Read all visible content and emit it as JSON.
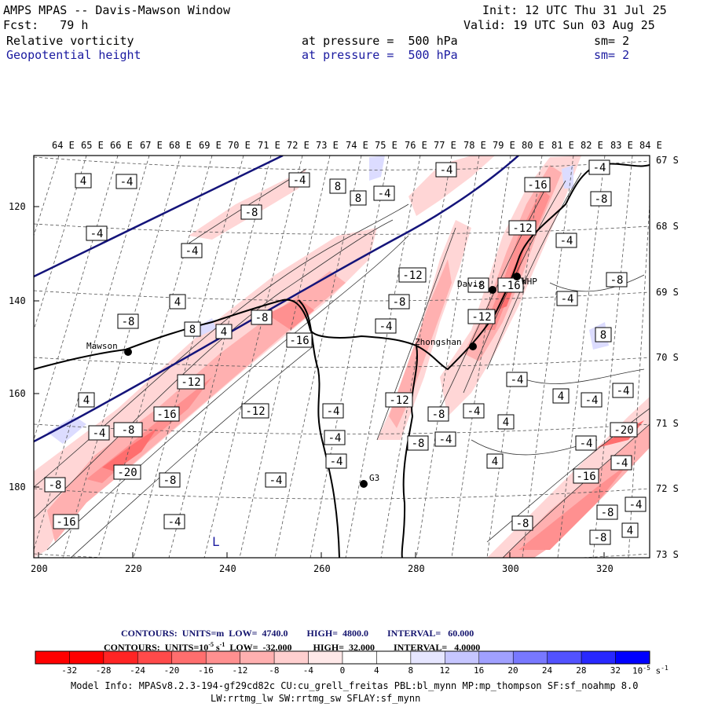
{
  "header": {
    "title": "AMPS MPAS -- Davis-Mawson Window",
    "forecast": "Fcst:   79 h",
    "init": "Init: 12 UTC Thu 31 Jul 25",
    "valid": "Valid: 19 UTC Sun 03 Aug 25",
    "field1": {
      "name": "Relative vorticity",
      "level": "at pressure =  500 hPa",
      "smooth": "sm= 2"
    },
    "field2": {
      "name": "Geopotential height",
      "level": "at pressure =  500 hPa",
      "smooth": "sm= 2"
    }
  },
  "map": {
    "top_lon_labels": [
      "64 E",
      "65 E",
      "66 E",
      "67 E",
      "68 E",
      "69 E",
      "70 E",
      "71 E",
      "72 E",
      "73 E",
      "74 E",
      "75 E",
      "76 E",
      "77 E",
      "78 E",
      "79 E",
      "80 E",
      "81 E",
      "82 E",
      "83 E",
      "84 E"
    ],
    "right_lat_labels": [
      "67 S",
      "68 S",
      "69 S",
      "70 S",
      "71 S",
      "72 S",
      "73 S"
    ],
    "left_y_ticks": [
      "120",
      "140",
      "160",
      "180"
    ],
    "bottom_x_ticks": [
      "200",
      "220",
      "240",
      "260",
      "280",
      "300",
      "320"
    ],
    "stations": [
      {
        "name": "Mawson"
      },
      {
        "name": "Davis"
      },
      {
        "name": "Zhongshan"
      },
      {
        "name": "WHP"
      },
      {
        "name": "G3"
      }
    ],
    "contour_labels": [
      "4",
      "-4",
      "-4",
      "8",
      "-4",
      "-4",
      "-16",
      "-8",
      "-8",
      "-4",
      "-4",
      "-12",
      "-12",
      "-4",
      "-8",
      "4",
      "-8",
      "-8",
      "8",
      "4",
      "-4",
      "-16",
      "-8",
      "-12",
      "-4",
      "-4",
      "8",
      "-16",
      "-4",
      "-12",
      "-4",
      "4",
      "-4",
      "-16",
      "-12",
      "-8",
      "-4",
      "-4",
      "-4",
      "-4",
      "4",
      "-8",
      "-12",
      "-4",
      "4",
      "-8",
      "-20",
      "-4",
      "-20",
      "-8",
      "-4",
      "-4",
      "-16",
      "-8",
      "-16",
      "-4",
      "-8",
      "-4",
      "-8",
      "-8",
      "4",
      "-4",
      "4",
      "8",
      "-8",
      "L"
    ]
  },
  "contour_info": {
    "line1": "CONTOURS:  UNITS=m  LOW=  4740.0        HIGH=  4800.0        INTERVAL=   60.000",
    "line2": "CONTOURS:  UNITS=10",
    "line2_exp": "-5",
    "line2_rest": " s",
    "line2_exp2": "-1",
    "line2_tail": "  LOW=  -32.000         HIGH=  32.000        INTERVAL=   4.0000"
  },
  "colorbar": {
    "labels": [
      "-32",
      "-28",
      "-24",
      "-20",
      "-16",
      "-12",
      "-8",
      "-4",
      "0",
      "4",
      "8",
      "12",
      "16",
      "20",
      "24",
      "28",
      "32"
    ],
    "unit": "10",
    "unit_exp": "-5",
    "unit_tail": " s",
    "unit_exp2": "-1",
    "colors": [
      "#ff0000",
      "#ff2424",
      "#ff4a4a",
      "#ff6e6e",
      "#ff9090",
      "#ffb0b0",
      "#ffcfcf",
      "#ffe9e9",
      "#ffffff",
      "#ffffff",
      "#e6e6ff",
      "#c6c6ff",
      "#a0a0ff",
      "#7878ff",
      "#5252ff",
      "#2828ff",
      "#0000ff"
    ]
  },
  "model_info": {
    "line1": "Model Info: MPASv8.2.3-194-gf29cd82c CU:cu_grell_freitas PBL:bl_mynn MP:mp_thompson SF:sf_noahmp 8.0",
    "line2": "LW:rrtmg_lw SW:rrtmg_sw SFLAY:sf_mynn"
  }
}
